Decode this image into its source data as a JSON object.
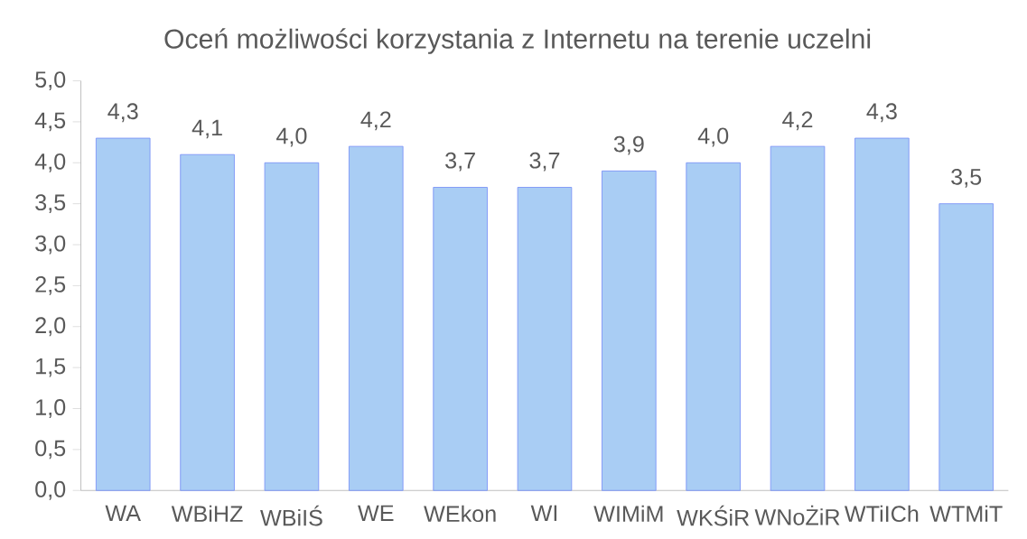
{
  "chart_data": {
    "type": "bar",
    "title": "Oceń możliwości korzystania z Internetu na terenie uczelni",
    "categories": [
      "WA",
      "WBiHZ",
      "WBiIŚ",
      "WE",
      "WEkon",
      "WI",
      "WIMiM",
      "WKŚiR",
      "WNoŻiR",
      "WTiICh",
      "WTMiT"
    ],
    "values": [
      4.3,
      4.1,
      4.0,
      4.2,
      3.7,
      3.7,
      3.9,
      4.0,
      4.2,
      4.3,
      3.5
    ],
    "value_labels": [
      "4,3",
      "4,1",
      "4,0",
      "4,2",
      "3,7",
      "3,7",
      "3,9",
      "4,0",
      "4,2",
      "4,3",
      "3,5"
    ],
    "color": "#a9cdf4",
    "ylim": [
      0,
      5
    ],
    "yticks": [
      {
        "value": 0,
        "label": "0,0"
      },
      {
        "value": 0.5,
        "label": "0,5"
      },
      {
        "value": 1,
        "label": "1,0"
      },
      {
        "value": 1.5,
        "label": "1,5"
      },
      {
        "value": 2,
        "label": "2,0"
      },
      {
        "value": 2.5,
        "label": "2,5"
      },
      {
        "value": 3,
        "label": "3,0"
      },
      {
        "value": 3.5,
        "label": "3,5"
      },
      {
        "value": 4,
        "label": "4,0"
      },
      {
        "value": 4.5,
        "label": "4,5"
      },
      {
        "value": 5,
        "label": "5,0"
      }
    ]
  }
}
